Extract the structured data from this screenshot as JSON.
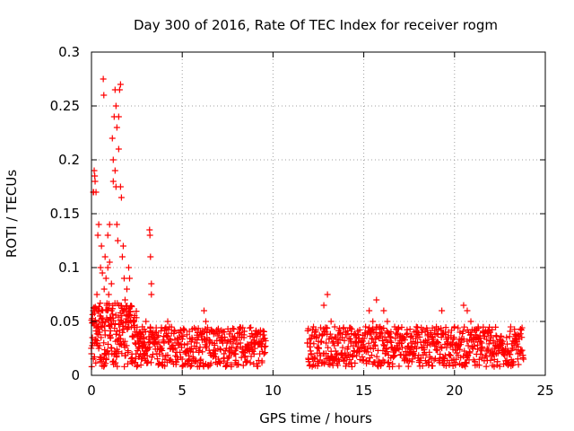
{
  "chart_data": {
    "type": "scatter",
    "title": "Day 300 of 2016, Rate Of TEC Index for receiver rogm",
    "xlabel": "GPS time / hours",
    "ylabel": "ROTI / TECUs",
    "xlim": [
      0,
      25
    ],
    "ylim": [
      0,
      0.3
    ],
    "xticks": [
      0,
      5,
      10,
      15,
      20,
      25
    ],
    "xtick_labels": [
      "0",
      "5",
      "10",
      "15",
      "20",
      "25"
    ],
    "yticks": [
      0,
      0.05,
      0.1,
      0.15,
      0.2,
      0.25,
      0.3
    ],
    "ytick_labels": [
      "0",
      "0.05",
      "0.1",
      "0.15",
      "0.2",
      "0.25",
      "0.3"
    ],
    "grid": true,
    "marker": "+",
    "color": "#ff0000",
    "series": [
      {
        "name": "ROTI",
        "points": [
          [
            0.0,
            0.02
          ],
          [
            0.05,
            0.035
          ],
          [
            0.1,
            0.06
          ],
          [
            0.1,
            0.17
          ],
          [
            0.12,
            0.17
          ],
          [
            0.15,
            0.19
          ],
          [
            0.18,
            0.185
          ],
          [
            0.2,
            0.05
          ],
          [
            0.2,
            0.18
          ],
          [
            0.25,
            0.17
          ],
          [
            0.25,
            0.03
          ],
          [
            0.3,
            0.045
          ],
          [
            0.3,
            0.075
          ],
          [
            0.35,
            0.06
          ],
          [
            0.35,
            0.13
          ],
          [
            0.4,
            0.14
          ],
          [
            0.4,
            0.025
          ],
          [
            0.45,
            0.04
          ],
          [
            0.5,
            0.055
          ],
          [
            0.5,
            0.1
          ],
          [
            0.55,
            0.12
          ],
          [
            0.6,
            0.095
          ],
          [
            0.6,
            0.05
          ],
          [
            0.65,
            0.275
          ],
          [
            0.68,
            0.26
          ],
          [
            0.7,
            0.08
          ],
          [
            0.75,
            0.11
          ],
          [
            0.8,
            0.09
          ],
          [
            0.8,
            0.02
          ],
          [
            0.85,
            0.065
          ],
          [
            0.9,
            0.1
          ],
          [
            0.9,
            0.13
          ],
          [
            0.95,
            0.075
          ],
          [
            1.0,
            0.105
          ],
          [
            1.0,
            0.14
          ],
          [
            1.05,
            0.035
          ],
          [
            1.1,
            0.06
          ],
          [
            1.1,
            0.085
          ],
          [
            1.15,
            0.22
          ],
          [
            1.2,
            0.18
          ],
          [
            1.2,
            0.2
          ],
          [
            1.25,
            0.24
          ],
          [
            1.3,
            0.265
          ],
          [
            1.3,
            0.19
          ],
          [
            1.35,
            0.175
          ],
          [
            1.35,
            0.25
          ],
          [
            1.4,
            0.23
          ],
          [
            1.4,
            0.14
          ],
          [
            1.45,
            0.125
          ],
          [
            1.5,
            0.24
          ],
          [
            1.5,
            0.21
          ],
          [
            1.55,
            0.265
          ],
          [
            1.6,
            0.27
          ],
          [
            1.6,
            0.175
          ],
          [
            1.65,
            0.165
          ],
          [
            1.7,
            0.11
          ],
          [
            1.75,
            0.12
          ],
          [
            1.8,
            0.09
          ],
          [
            1.85,
            0.07
          ],
          [
            1.9,
            0.06
          ],
          [
            1.95,
            0.08
          ],
          [
            2.0,
            0.055
          ],
          [
            2.05,
            0.1
          ],
          [
            2.1,
            0.09
          ],
          [
            2.2,
            0.045
          ],
          [
            2.3,
            0.05
          ],
          [
            2.4,
            0.03
          ],
          [
            2.5,
            0.04
          ],
          [
            2.6,
            0.03
          ],
          [
            2.7,
            0.02
          ],
          [
            2.8,
            0.045
          ],
          [
            2.9,
            0.035
          ],
          [
            3.0,
            0.05
          ],
          [
            3.1,
            0.025
          ],
          [
            3.2,
            0.135
          ],
          [
            3.22,
            0.13
          ],
          [
            3.25,
            0.11
          ],
          [
            3.3,
            0.085
          ],
          [
            3.3,
            0.075
          ],
          [
            3.4,
            0.04
          ],
          [
            3.5,
            0.03
          ],
          [
            3.6,
            0.02
          ],
          [
            3.8,
            0.025
          ],
          [
            4.0,
            0.03
          ],
          [
            4.2,
            0.05
          ],
          [
            4.3,
            0.045
          ],
          [
            4.5,
            0.025
          ],
          [
            4.7,
            0.03
          ],
          [
            5.0,
            0.015
          ],
          [
            5.2,
            0.02
          ],
          [
            5.5,
            0.025
          ],
          [
            5.8,
            0.03
          ],
          [
            6.0,
            0.04
          ],
          [
            6.2,
            0.06
          ],
          [
            6.3,
            0.05
          ],
          [
            6.5,
            0.03
          ],
          [
            6.8,
            0.02
          ],
          [
            7.0,
            0.015
          ],
          [
            7.3,
            0.02
          ],
          [
            7.6,
            0.025
          ],
          [
            7.9,
            0.02
          ],
          [
            8.2,
            0.03
          ],
          [
            8.4,
            0.035
          ],
          [
            8.6,
            0.025
          ],
          [
            8.8,
            0.03
          ],
          [
            9.0,
            0.025
          ],
          [
            9.3,
            0.03
          ],
          [
            9.5,
            0.02
          ],
          [
            11.9,
            0.03
          ],
          [
            12.1,
            0.02
          ],
          [
            12.3,
            0.04
          ],
          [
            12.5,
            0.025
          ],
          [
            12.8,
            0.065
          ],
          [
            13.0,
            0.075
          ],
          [
            13.2,
            0.05
          ],
          [
            13.4,
            0.045
          ],
          [
            13.6,
            0.03
          ],
          [
            13.8,
            0.02
          ],
          [
            14.0,
            0.04
          ],
          [
            14.3,
            0.03
          ],
          [
            14.6,
            0.035
          ],
          [
            14.9,
            0.025
          ],
          [
            15.1,
            0.045
          ],
          [
            15.3,
            0.06
          ],
          [
            15.5,
            0.05
          ],
          [
            15.7,
            0.07
          ],
          [
            15.9,
            0.045
          ],
          [
            16.1,
            0.06
          ],
          [
            16.3,
            0.05
          ],
          [
            16.5,
            0.035
          ],
          [
            16.7,
            0.045
          ],
          [
            16.9,
            0.03
          ],
          [
            17.1,
            0.035
          ],
          [
            17.4,
            0.025
          ],
          [
            17.6,
            0.03
          ],
          [
            17.9,
            0.045
          ],
          [
            18.2,
            0.04
          ],
          [
            18.5,
            0.03
          ],
          [
            18.8,
            0.035
          ],
          [
            19.0,
            0.045
          ],
          [
            19.3,
            0.06
          ],
          [
            19.5,
            0.04
          ],
          [
            19.8,
            0.035
          ],
          [
            20.0,
            0.045
          ],
          [
            20.3,
            0.04
          ],
          [
            20.5,
            0.065
          ],
          [
            20.7,
            0.06
          ],
          [
            20.9,
            0.05
          ],
          [
            21.1,
            0.035
          ],
          [
            21.3,
            0.045
          ],
          [
            21.5,
            0.03
          ],
          [
            21.8,
            0.025
          ],
          [
            22.0,
            0.035
          ],
          [
            22.3,
            0.02
          ],
          [
            22.6,
            0.03
          ],
          [
            22.9,
            0.02
          ],
          [
            23.2,
            0.025
          ],
          [
            23.5,
            0.02
          ],
          [
            23.8,
            0.015
          ]
        ],
        "band_min": 0.008,
        "band_max": 0.045,
        "gap_hours": [
          9.6,
          11.9
        ],
        "coverage_end": 23.8
      }
    ]
  }
}
